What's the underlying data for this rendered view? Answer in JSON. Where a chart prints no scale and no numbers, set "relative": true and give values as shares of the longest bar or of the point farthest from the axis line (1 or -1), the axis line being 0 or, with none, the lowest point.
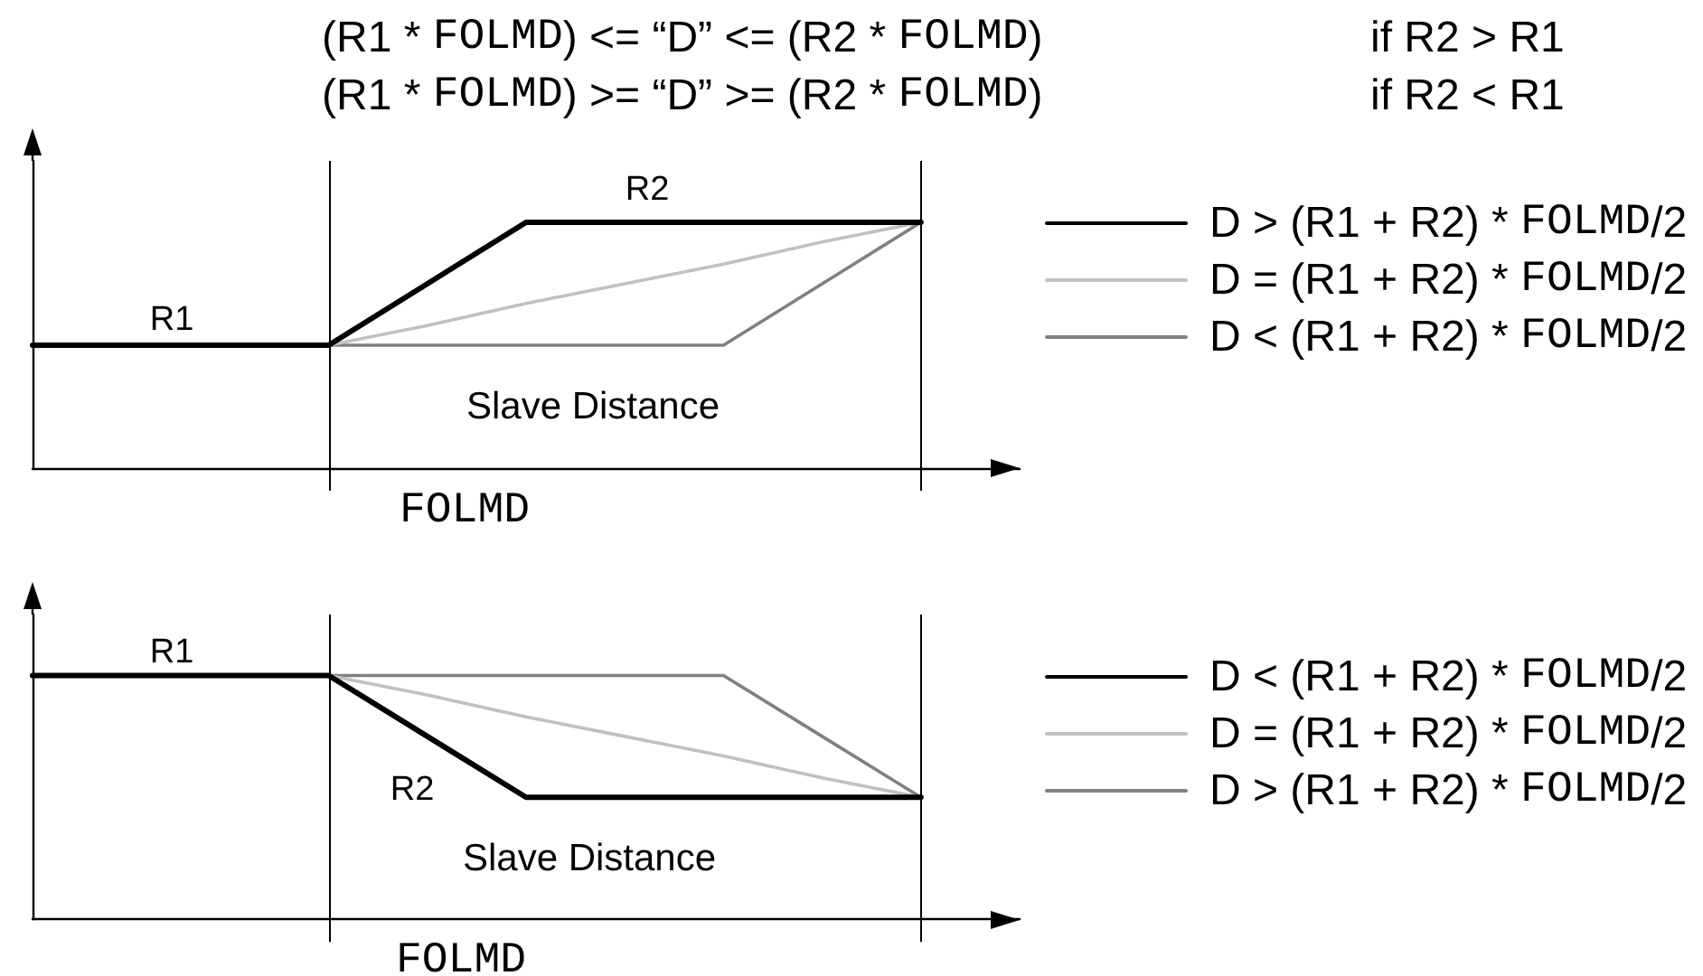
{
  "chart_data": [
    {
      "type": "line",
      "relative": true,
      "categories": [
        null,
        null,
        null,
        null,
        null,
        null,
        null,
        null,
        null,
        null
      ],
      "annotations": [
        "(R1 * FOLMD) <= “D” <= (R2 * FOLMD)",
        "if R2 > R1",
        "(R1 * FOLMD) >= “D” >= (R2 * FOLMD)",
        "if R2 < R1",
        "R1",
        "R2",
        "Slave Distance"
      ],
      "xlabel": "FOLMD",
      "series": [
        {
          "name": "D > (R1 + R2) * FOLMD/2",
          "color": "#000000",
          "values": [
            0.5,
            0.5,
            0.5,
            0.5,
            0.75,
            1,
            1,
            1,
            1,
            1
          ]
        },
        {
          "name": "D = (R1 + R2) * FOLMD/2",
          "color": "#c0c0c0",
          "values": [
            null,
            null,
            null,
            0.5,
            0.58,
            0.67,
            0.75,
            0.83,
            0.92,
            1
          ]
        },
        {
          "name": "D < (R1 + R2) * FOLMD/2",
          "color": "#808080",
          "values": [
            null,
            null,
            null,
            0.5,
            0.5,
            0.5,
            0.5,
            0.5,
            0.75,
            1
          ]
        }
      ],
      "legend": "right",
      "marker": "none",
      "line_style": "solid",
      "grid": false
    },
    {
      "type": "line",
      "relative": true,
      "categories": [
        null,
        null,
        null,
        null,
        null,
        null,
        null,
        null,
        null,
        null
      ],
      "annotations": [
        "R1",
        "R2",
        "Slave Distance"
      ],
      "xlabel": "FOLMD",
      "series": [
        {
          "name": "D < (R1 + R2) * FOLMD/2",
          "color": "#000000",
          "values": [
            1,
            1,
            1,
            1,
            0.75,
            0.5,
            0.5,
            0.5,
            0.5,
            0.5
          ]
        },
        {
          "name": "D = (R1 + R2) * FOLMD/2",
          "color": "#c0c0c0",
          "values": [
            null,
            null,
            null,
            1,
            0.92,
            0.83,
            0.75,
            0.67,
            0.58,
            0.5
          ]
        },
        {
          "name": "D > (R1 + R2) * FOLMD/2",
          "color": "#808080",
          "values": [
            null,
            null,
            null,
            1,
            1,
            1,
            1,
            1,
            0.75,
            0.5
          ]
        }
      ],
      "legend": "right",
      "marker": "none",
      "line_style": "solid",
      "grid": false
    }
  ]
}
